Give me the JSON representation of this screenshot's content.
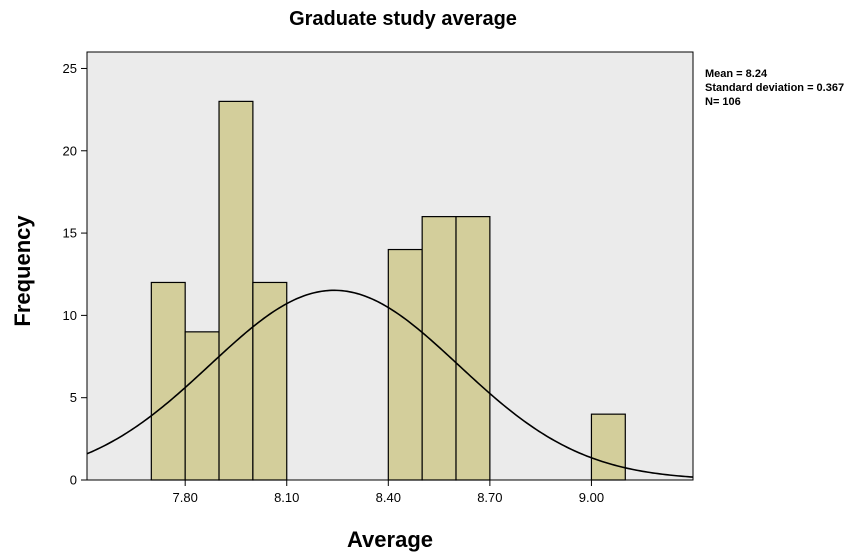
{
  "chart_data": {
    "type": "bar",
    "title": "Graduate study average",
    "xlabel": "Average",
    "ylabel": "Frequency",
    "bin_width": 0.1,
    "bins": [
      {
        "x_start": 7.7,
        "x_end": 7.8,
        "value": 12
      },
      {
        "x_start": 7.8,
        "x_end": 7.9,
        "value": 9
      },
      {
        "x_start": 7.9,
        "x_end": 8.0,
        "value": 23
      },
      {
        "x_start": 8.0,
        "x_end": 8.1,
        "value": 12
      },
      {
        "x_start": 8.4,
        "x_end": 8.5,
        "value": 14
      },
      {
        "x_start": 8.5,
        "x_end": 8.6,
        "value": 16
      },
      {
        "x_start": 8.6,
        "x_end": 8.7,
        "value": 16
      },
      {
        "x_start": 9.0,
        "x_end": 9.1,
        "value": 4
      }
    ],
    "xlim": [
      7.51,
      9.3
    ],
    "ylim": [
      0,
      26
    ],
    "x_ticks": [
      {
        "value": 7.8,
        "label": "7.80"
      },
      {
        "value": 8.1,
        "label": "8.10"
      },
      {
        "value": 8.4,
        "label": "8.40"
      },
      {
        "value": 8.7,
        "label": "8.70"
      },
      {
        "value": 9.0,
        "label": "9.00"
      }
    ],
    "y_ticks": [
      {
        "value": 0,
        "label": "0"
      },
      {
        "value": 5,
        "label": "5"
      },
      {
        "value": 10,
        "label": "10"
      },
      {
        "value": 15,
        "label": "15"
      },
      {
        "value": 20,
        "label": "20"
      },
      {
        "value": 25,
        "label": "25"
      }
    ],
    "normal_curve": {
      "mean": 8.24,
      "sd": 0.367,
      "n": 106
    },
    "stats_lines": [
      "Mean = 8.24",
      "Standard deviation = 0.367",
      "N= 106"
    ],
    "grid": false,
    "colors": {
      "plot_background": "#ebebeb",
      "bar_fill": "#d3ce9b",
      "bar_stroke": "#000000",
      "curve": "#000000"
    }
  }
}
